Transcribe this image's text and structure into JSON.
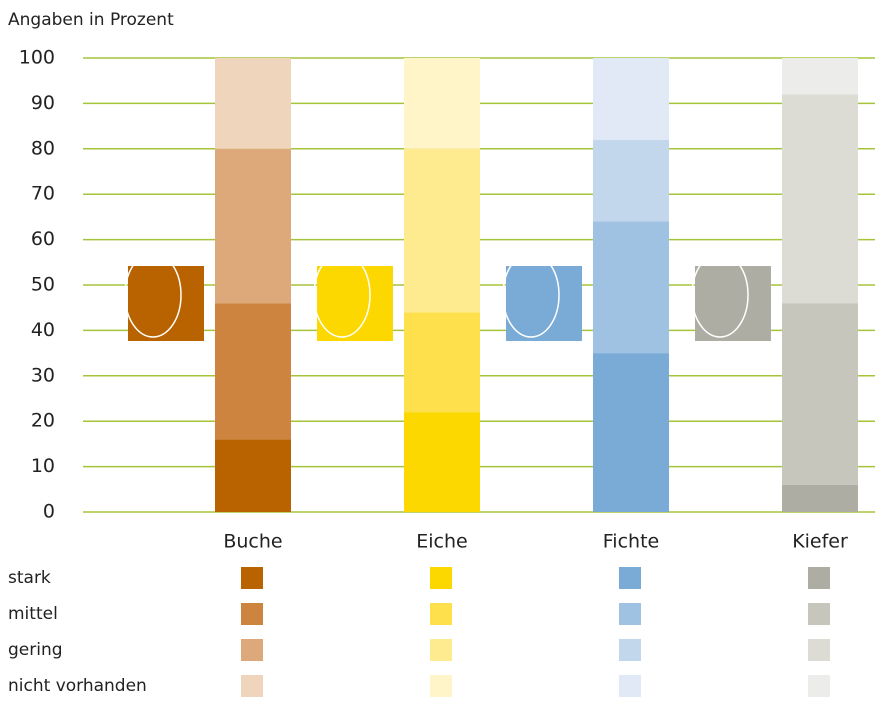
{
  "chart_data": {
    "type": "stacked-bar",
    "subtitle": "Angaben in Prozent",
    "categories": [
      "Buche",
      "Eiche",
      "Fichte",
      "Kiefer"
    ],
    "series": [
      {
        "name": "stark",
        "colors": [
          "#b86200",
          "#fcd800",
          "#7aabd6",
          "#aeada3"
        ],
        "values": [
          16,
          22,
          35,
          6
        ]
      },
      {
        "name": "mittel",
        "colors": [
          "#cc843e",
          "#fde04b",
          "#9fc2e3",
          "#c7c6bd"
        ],
        "values": [
          30,
          22,
          29,
          40
        ]
      },
      {
        "name": "gering",
        "colors": [
          "#dda97a",
          "#feeb8f",
          "#c2d6ec",
          "#dcdbd4"
        ],
        "values": [
          34,
          36,
          18,
          46
        ]
      },
      {
        "name": "nicht vorhanden",
        "colors": [
          "#f0d5bd",
          "#fff5c9",
          "#e0e9f5",
          "#ececea"
        ],
        "values": [
          20,
          20,
          18,
          8
        ]
      }
    ],
    "ylim": [
      0,
      100
    ],
    "yticks": [
      0,
      10,
      20,
      30,
      40,
      50,
      60,
      70,
      80,
      90,
      100
    ],
    "grid": true,
    "grid_color": "#a5c43a"
  }
}
